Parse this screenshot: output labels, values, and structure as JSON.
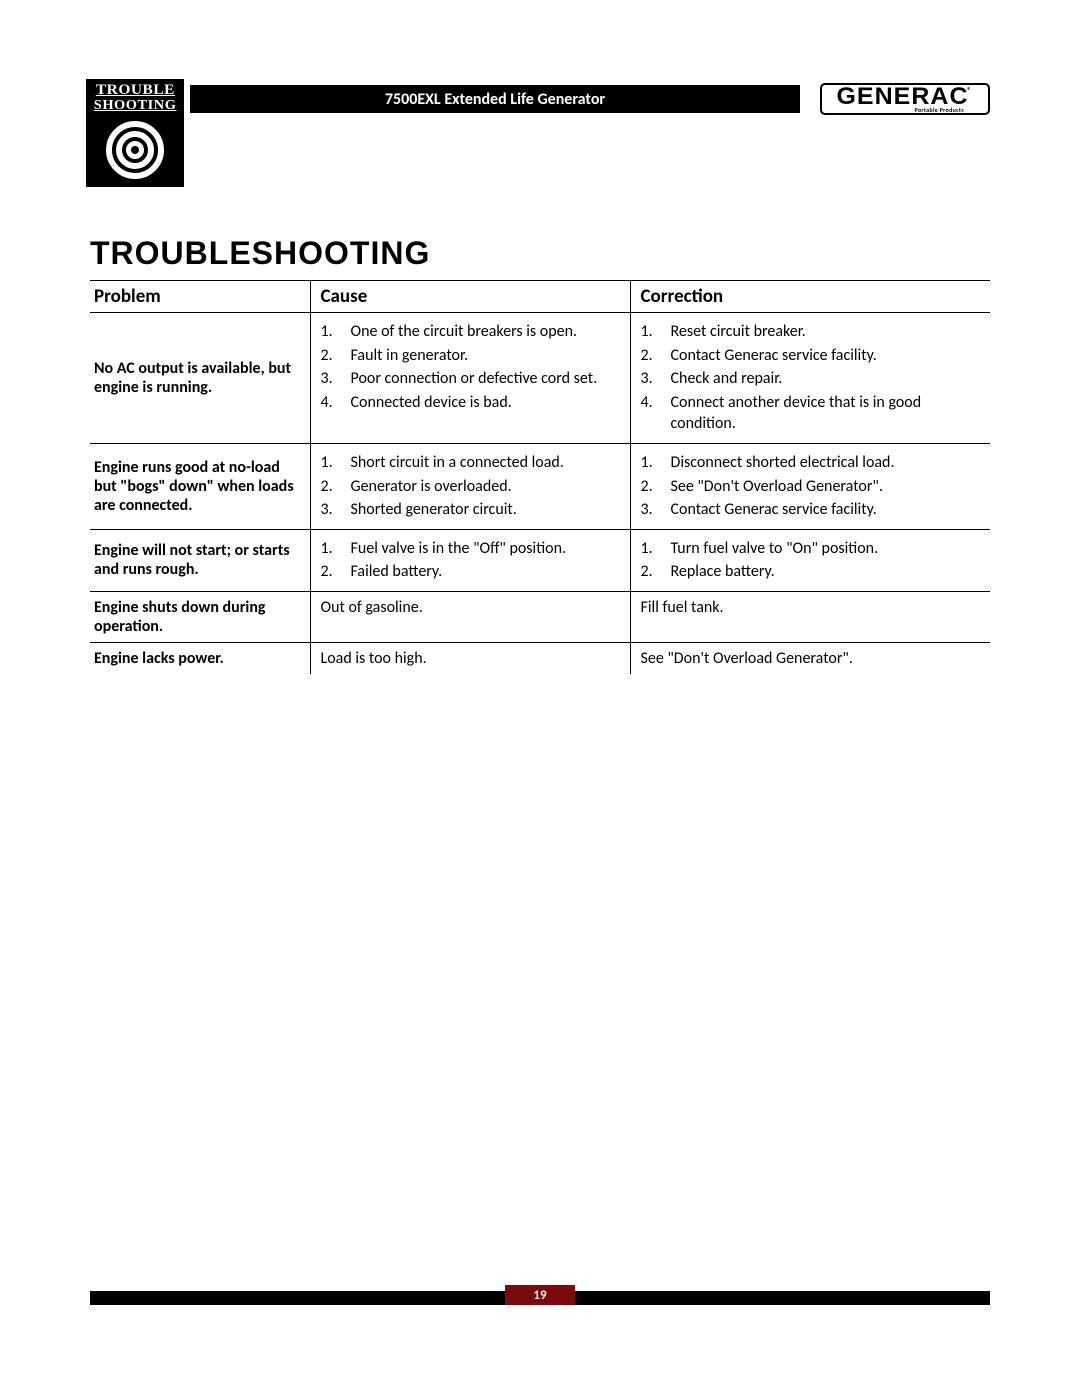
{
  "header": {
    "section_label_top": "TROUBLE",
    "section_label_bottom": "SHOOTING",
    "product_title": "7500EXL Extended Life Generator",
    "brand_name": "GENERAC",
    "brand_sub": "Portable Products",
    "brand_reg": "®"
  },
  "colors": {
    "black": "#000000",
    "white": "#ffffff",
    "accent_red": "#7a0b0b"
  },
  "heading": "TROUBLESHOOTING",
  "table": {
    "columns": [
      "Problem",
      "Cause",
      "Correction"
    ],
    "rows": [
      {
        "problem": "No AC output is available, but engine is running.",
        "causes": [
          "One of the circuit breakers is open.",
          "Fault in generator.",
          "Poor connection or defective cord set.",
          "Connected device is bad."
        ],
        "corrections": [
          "Reset circuit breaker.",
          "Contact Generac service facility.",
          "Check and repair.",
          "Connect another device that is in good condition."
        ]
      },
      {
        "problem": "Engine runs good at no-load but \"bogs\" down\" when loads are connected.",
        "causes": [
          "Short circuit in a connected load.",
          "Generator is overloaded.",
          "Shorted generator circuit."
        ],
        "corrections": [
          "Disconnect shorted electrical load.",
          "See \"Don't Overload Generator\".",
          "Contact Generac service facility."
        ]
      },
      {
        "problem": "Engine will not start; or starts and runs rough.",
        "causes": [
          "Fuel valve is in the \"Off\" position.",
          "Failed battery."
        ],
        "corrections": [
          "Turn fuel valve to \"On\" position.",
          "Replace battery."
        ]
      },
      {
        "problem": "Engine shuts down during operation.",
        "causes_plain": "Out of gasoline.",
        "corrections_plain": "Fill fuel tank."
      },
      {
        "problem": "Engine lacks power.",
        "causes_plain": "Load is too high.",
        "corrections_plain": "See \"Don't Overload Generator\"."
      }
    ]
  },
  "footer": {
    "page_number": "19"
  }
}
